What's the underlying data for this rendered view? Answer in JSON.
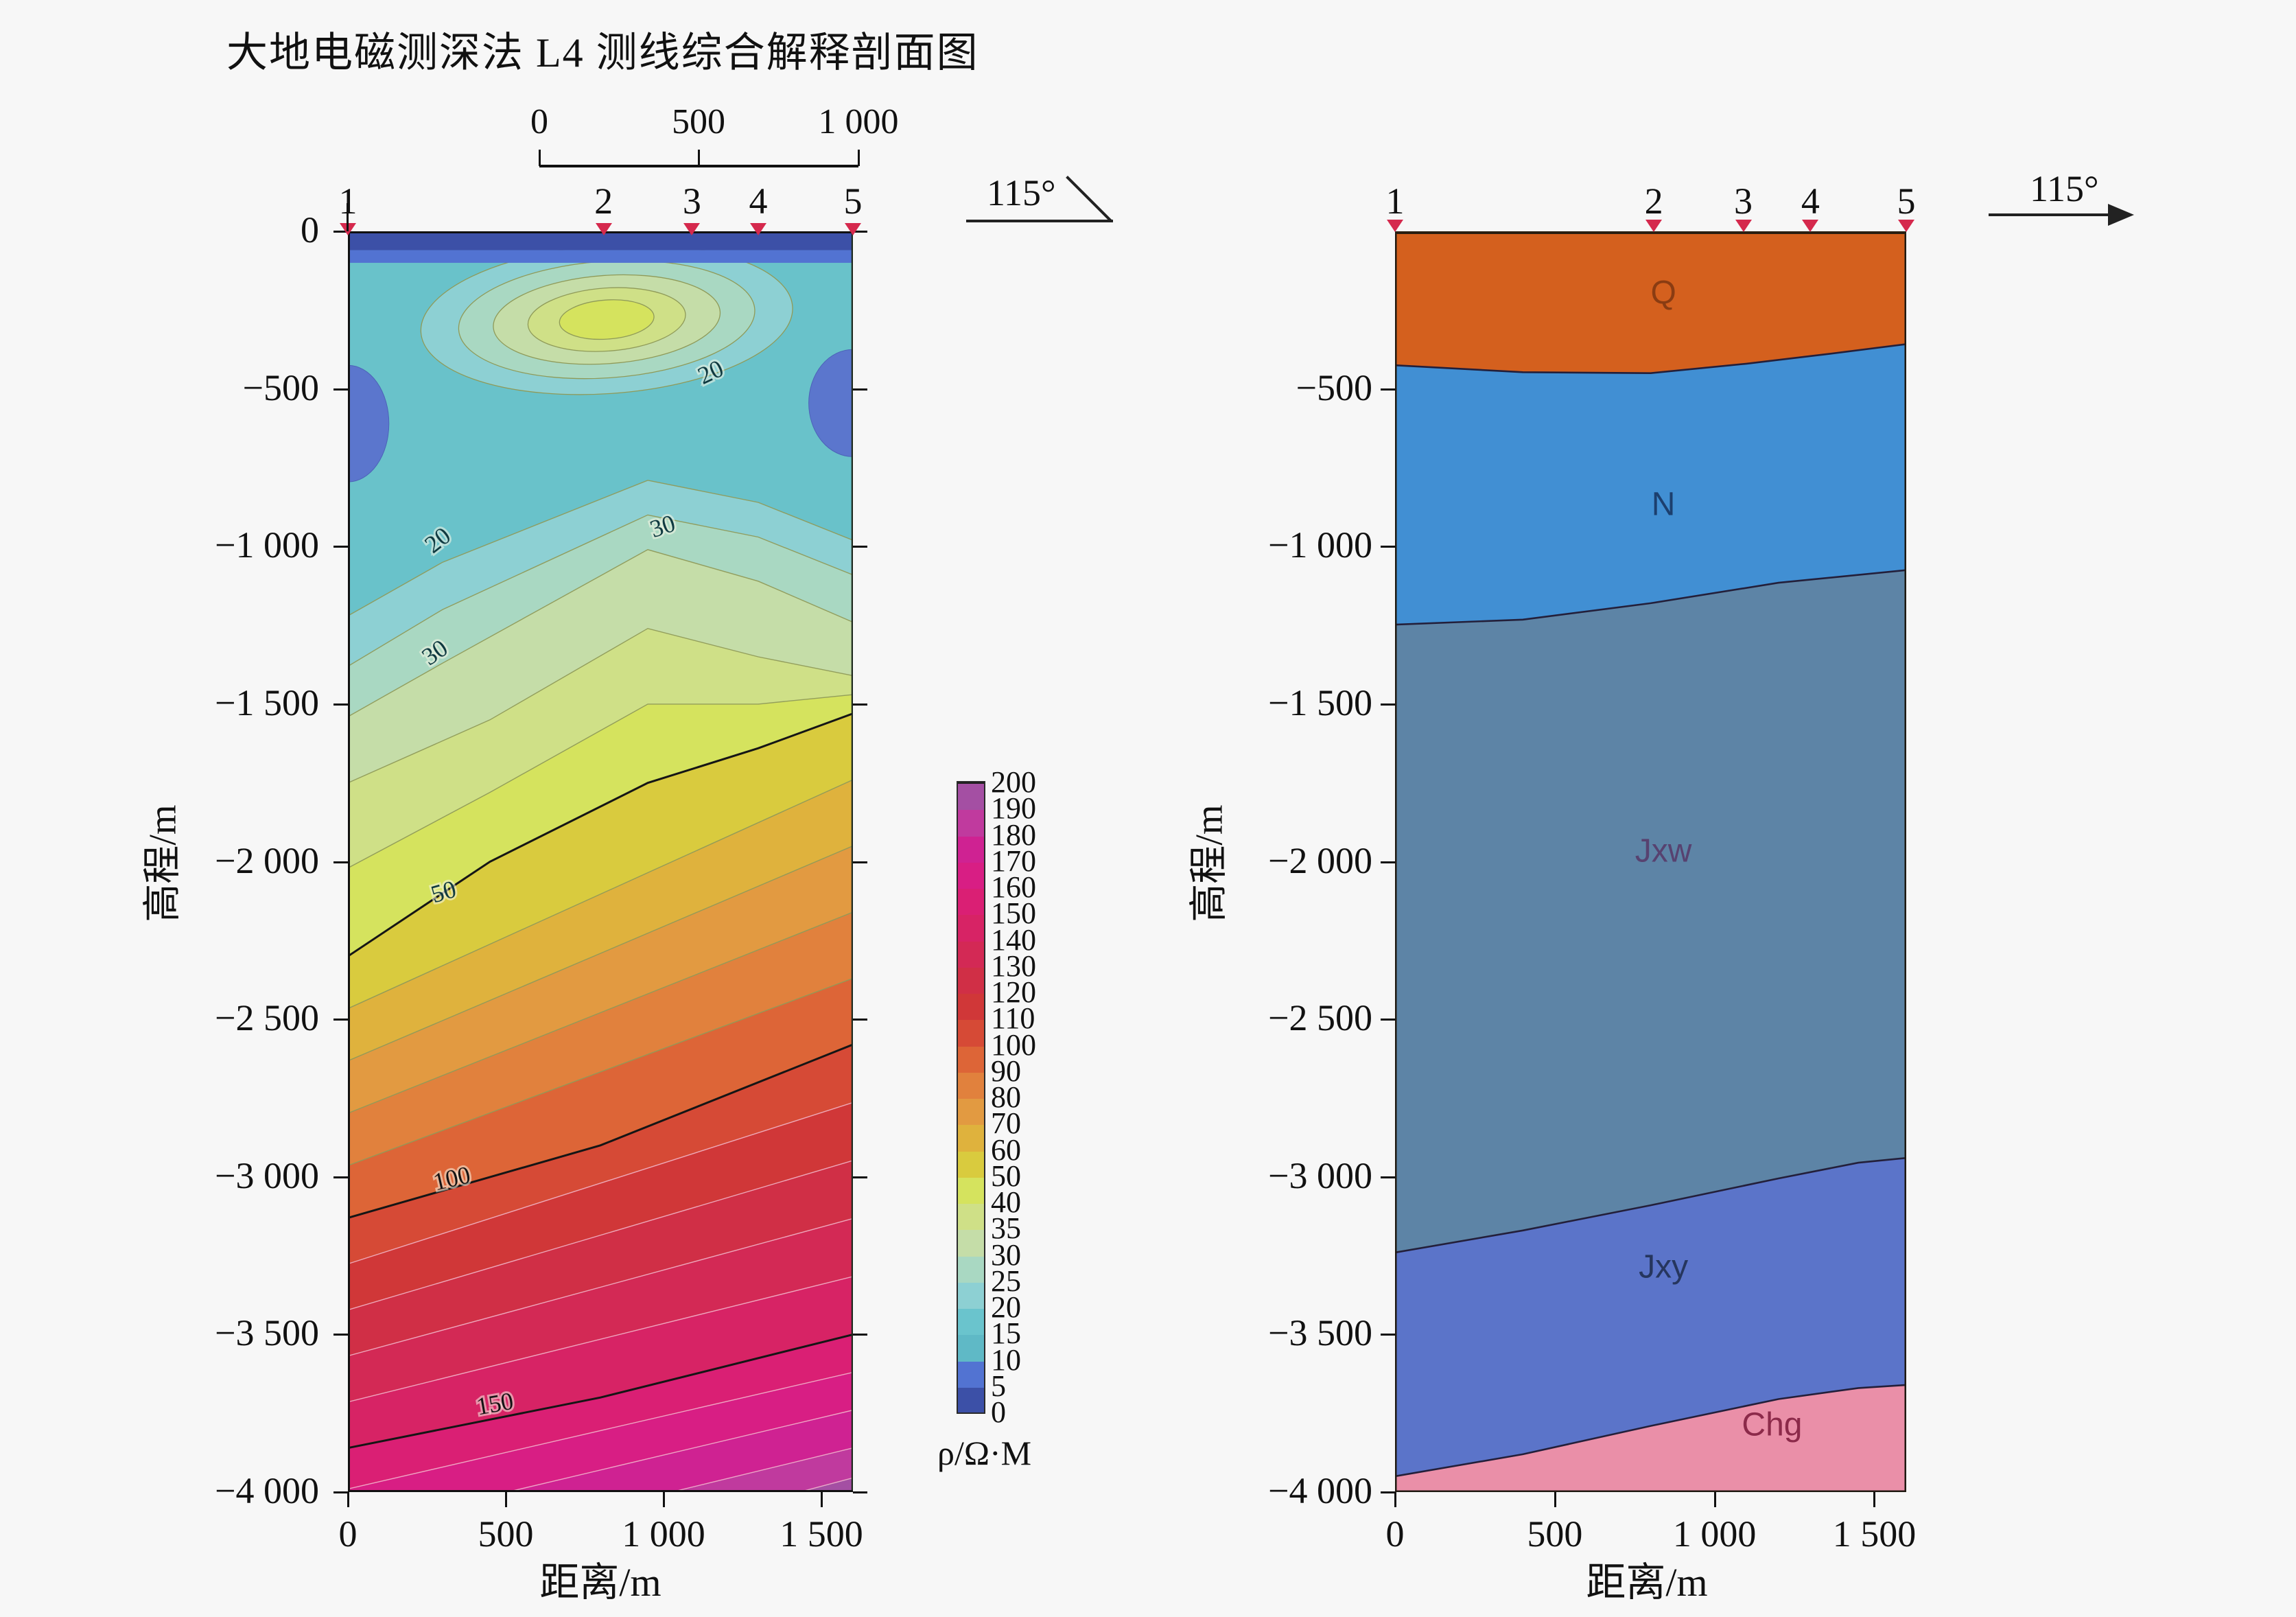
{
  "title": "大地电磁测深法 L4 测线综合解释剖面图",
  "scale_bar": {
    "tick_labels": [
      "0",
      "500",
      "1 000"
    ],
    "length_m": 1000
  },
  "azimuth_left": {
    "label": "115°"
  },
  "azimuth_right": {
    "label": "115°"
  },
  "marker_color": "#d5294d",
  "left_panel": {
    "stations": {
      "labels": [
        "1",
        "2",
        "3",
        "4",
        "5"
      ],
      "x_m": [
        0,
        810,
        1090,
        1300,
        1600
      ]
    },
    "ylabel": "高程/m",
    "xlabel": "距离/m",
    "ytick_labels": [
      "0",
      "−500",
      "−1 000",
      "−1 500",
      "−2 000",
      "−2 500",
      "−3 000",
      "−3 500",
      "−4 000"
    ],
    "ytick_values": [
      0,
      -500,
      -1000,
      -1500,
      -2000,
      -2500,
      -3000,
      -3500,
      -4000
    ],
    "xtick_labels": [
      "0",
      "500",
      "1 000",
      "1 500"
    ],
    "xtick_values": [
      0,
      500,
      1000,
      1500
    ]
  },
  "legend": {
    "title": "ρ/Ω·M",
    "tick_values": [
      0,
      5,
      10,
      15,
      20,
      25,
      30,
      35,
      40,
      50,
      60,
      70,
      80,
      90,
      100,
      110,
      120,
      130,
      140,
      150,
      160,
      170,
      180,
      190,
      200
    ],
    "band_colors_bottom_to_top": [
      "#3c50a7",
      "#5273d2",
      "#5fb9c6",
      "#6ac4cd",
      "#8dd0d3",
      "#a9d8c2",
      "#c5dda8",
      "#cfe087",
      "#d5e35e",
      "#d9cb3e",
      "#dfb23d",
      "#e29a41",
      "#e1813d",
      "#dd6537",
      "#d64a36",
      "#d03738",
      "#d02f46",
      "#d32955",
      "#d72365",
      "#da1f74",
      "#d81e84",
      "#cf2292",
      "#c03a9e",
      "#a44fa3"
    ]
  },
  "right_panel": {
    "stations": {
      "labels": [
        "1",
        "2",
        "3",
        "4",
        "5"
      ],
      "x_m": [
        0,
        810,
        1090,
        1300,
        1600
      ]
    },
    "ylabel": "高程/m",
    "xlabel": "距离/m",
    "ytick_labels": [
      "−500",
      "−1 000",
      "−1 500",
      "−2 000",
      "−2 500",
      "−3 000",
      "−3 500",
      "−4 000"
    ],
    "ytick_values": [
      -500,
      -1000,
      -1500,
      -2000,
      -2500,
      -3000,
      -3500,
      -4000
    ],
    "xtick_labels": [
      "0",
      "500",
      "1 000",
      "1 500"
    ],
    "xtick_values": [
      0,
      500,
      1000,
      1500
    ]
  },
  "chart_data": [
    {
      "type": "heatmap",
      "panel": "left",
      "title": "大地电磁测深法 L4 测线综合解释剖面图",
      "xlabel": "距离/m",
      "ylabel": "高程/m",
      "xlim": [
        0,
        1600
      ],
      "ylim": [
        -4000,
        0
      ],
      "azimuth": "115°",
      "colorbar_label": "ρ/Ω·M",
      "background_color": "#69c2ca",
      "background_value_range": "10–20 Ω·m",
      "surface_strips": [
        {
          "depth_range_m": [
            0,
            60
          ],
          "color": "#3c50a7",
          "value_range": "0–5"
        },
        {
          "depth_range_m": [
            60,
            100
          ],
          "color": "#5273d2",
          "value_range": "5–10"
        }
      ],
      "low_resistivity_blobs": [
        {
          "cx_m": 0,
          "cy_depth_m": 610,
          "rx_m": 130,
          "ry_m": 185,
          "color": "#5b76cd"
        },
        {
          "cx_m": 1600,
          "cy_depth_m": 545,
          "rx_m": 140,
          "ry_m": 170,
          "color": "#5b76cd"
        }
      ],
      "shallow_anomaly": {
        "cx_m": 820,
        "cy_depth_m": 280,
        "rotation_deg": -4,
        "rings": [
          {
            "rx_m": 590,
            "ry_m": 235,
            "color": "#8dd0d3"
          },
          {
            "rx_m": 470,
            "ry_m": 185,
            "color": "#a9d8c2"
          },
          {
            "rx_m": 360,
            "ry_m": 140,
            "color": "#c5dda8"
          },
          {
            "rx_m": 250,
            "ry_m": 100,
            "color": "#cfe087"
          },
          {
            "rx_m": 150,
            "ry_m": 62,
            "color": "#d5e35e"
          }
        ]
      },
      "contour_boundaries": [
        {
          "value": 20,
          "bold": false,
          "fill_below": "#8dd0d3",
          "points": [
            [
              0,
              1220
            ],
            [
              300,
              1050
            ],
            [
              950,
              790
            ],
            [
              1300,
              860
            ],
            [
              1600,
              980
            ]
          ]
        },
        {
          "value": 25,
          "bold": false,
          "fill_below": "#a9d8c2",
          "points": [
            [
              0,
              1380
            ],
            [
              300,
              1200
            ],
            [
              950,
              900
            ],
            [
              1300,
              970
            ],
            [
              1600,
              1090
            ]
          ]
        },
        {
          "value": 30,
          "bold": false,
          "fill_below": "#c5dda8",
          "points": [
            [
              0,
              1540
            ],
            [
              300,
              1370
            ],
            [
              950,
              1010
            ],
            [
              1300,
              1110
            ],
            [
              1600,
              1240
            ]
          ]
        },
        {
          "value": 35,
          "bold": false,
          "fill_below": "#cfe087",
          "points": [
            [
              0,
              1750
            ],
            [
              450,
              1550
            ],
            [
              950,
              1260
            ],
            [
              1300,
              1350
            ],
            [
              1600,
              1410
            ]
          ]
        },
        {
          "value": 40,
          "bold": false,
          "fill_below": "#d5e35e",
          "points": [
            [
              0,
              2020
            ],
            [
              450,
              1780
            ],
            [
              950,
              1500
            ],
            [
              1300,
              1500
            ],
            [
              1600,
              1470
            ]
          ]
        },
        {
          "value": 50,
          "bold": true,
          "fill_below": "#d9cb3e",
          "points": [
            [
              0,
              2300
            ],
            [
              450,
              2000
            ],
            [
              950,
              1750
            ],
            [
              1300,
              1640
            ],
            [
              1600,
              1530
            ]
          ]
        },
        {
          "value": 60,
          "bold": false,
          "fill_below": "#dfb23d",
          "points": [
            [
              0,
              2466
            ],
            [
              1600,
              1740
            ]
          ]
        },
        {
          "value": 70,
          "bold": false,
          "fill_below": "#e29a41",
          "points": [
            [
              0,
              2632
            ],
            [
              1600,
              1950
            ]
          ]
        },
        {
          "value": 80,
          "bold": false,
          "fill_below": "#e1813d",
          "points": [
            [
              0,
              2798
            ],
            [
              1600,
              2160
            ]
          ]
        },
        {
          "value": 90,
          "bold": false,
          "fill_below": "#dd6537",
          "points": [
            [
              0,
              2964
            ],
            [
              1600,
              2370
            ]
          ]
        },
        {
          "value": 100,
          "bold": true,
          "fill_below": "#d64a36",
          "points": [
            [
              0,
              3130
            ],
            [
              800,
              2900
            ],
            [
              1600,
              2580
            ]
          ]
        },
        {
          "value": 110,
          "bold": false,
          "fill_below": "#d03738",
          "points": [
            [
              0,
              3276
            ],
            [
              1600,
              2764
            ]
          ]
        },
        {
          "value": 120,
          "bold": false,
          "fill_below": "#d02f46",
          "points": [
            [
              0,
              3422
            ],
            [
              1600,
              2948
            ]
          ]
        },
        {
          "value": 130,
          "bold": false,
          "fill_below": "#d32955",
          "points": [
            [
              0,
              3568
            ],
            [
              1600,
              3132
            ]
          ]
        },
        {
          "value": 140,
          "bold": false,
          "fill_below": "#d72365",
          "points": [
            [
              0,
              3714
            ],
            [
              1600,
              3316
            ]
          ]
        },
        {
          "value": 150,
          "bold": true,
          "fill_below": "#da1f74",
          "points": [
            [
              0,
              3860
            ],
            [
              800,
              3700
            ],
            [
              1600,
              3500
            ]
          ]
        },
        {
          "value": 160,
          "bold": false,
          "fill_below": "#d81e84",
          "points": [
            [
              0,
              3990
            ],
            [
              1600,
              3620
            ]
          ]
        },
        {
          "value": 170,
          "bold": false,
          "fill_below": "#cf2292",
          "points": [
            [
              0,
              4120
            ],
            [
              1600,
              3740
            ]
          ]
        },
        {
          "value": 180,
          "bold": false,
          "fill_below": "#c03a9e",
          "points": [
            [
              0,
              4250
            ],
            [
              1600,
              3860
            ]
          ]
        },
        {
          "value": 190,
          "bold": false,
          "fill_below": "#a44fa3",
          "points": [
            [
              0,
              4380
            ],
            [
              1600,
              3955
            ]
          ]
        }
      ],
      "contour_labels": [
        {
          "text": "20",
          "x_m": 1160,
          "depth_m": 470,
          "rotation_deg": -25
        },
        {
          "text": "20",
          "x_m": 300,
          "depth_m": 1000,
          "rotation_deg": -38
        },
        {
          "text": "30",
          "x_m": 1005,
          "depth_m": 960,
          "rotation_deg": -18
        },
        {
          "text": "30",
          "x_m": 290,
          "depth_m": 1357,
          "rotation_deg": -35
        },
        {
          "text": "50",
          "x_m": 310,
          "depth_m": 2120,
          "rotation_deg": -16
        },
        {
          "text": "100",
          "x_m": 335,
          "depth_m": 3030,
          "rotation_deg": -13
        },
        {
          "text": "150",
          "x_m": 470,
          "depth_m": 3745,
          "rotation_deg": -10
        }
      ],
      "stations": {
        "labels": [
          "1",
          "2",
          "3",
          "4",
          "5"
        ],
        "x_m": [
          0,
          810,
          1090,
          1300,
          1600
        ]
      }
    },
    {
      "type": "area",
      "panel": "right",
      "xlabel": "距离/m",
      "ylabel": "高程/m",
      "xlim": [
        0,
        1600
      ],
      "ylim": [
        -4000,
        0
      ],
      "azimuth": "115°",
      "layers": [
        {
          "name": "Q",
          "color": "#d4601e",
          "label_color": "#8a3c12",
          "label_pos_m": [
            840,
            230
          ],
          "base_depth_m": [
            [
              0,
              425
            ],
            [
              400,
              447
            ],
            [
              800,
              450
            ],
            [
              1100,
              420
            ],
            [
              1350,
              390
            ],
            [
              1600,
              358
            ]
          ]
        },
        {
          "name": "N",
          "color": "#418fd3",
          "label_color": "#1c3f6e",
          "label_pos_m": [
            840,
            900
          ],
          "base_depth_m": [
            [
              0,
              1248
            ],
            [
              400,
              1232
            ],
            [
              800,
              1180
            ],
            [
              1200,
              1115
            ],
            [
              1600,
              1075
            ]
          ]
        },
        {
          "name": "Jxw",
          "color": "#5d84a6",
          "label_color": "#574270",
          "label_pos_m": [
            840,
            2000
          ],
          "base_depth_m": [
            [
              0,
              3240
            ],
            [
              400,
              3170
            ],
            [
              800,
              3090
            ],
            [
              1200,
              3005
            ],
            [
              1450,
              2955
            ],
            [
              1600,
              2940
            ]
          ]
        },
        {
          "name": "Jxy",
          "color": "#5b74c9",
          "label_color": "#26365e",
          "label_pos_m": [
            840,
            3320
          ],
          "base_depth_m": [
            [
              0,
              3950
            ],
            [
              400,
              3880
            ],
            [
              800,
              3790
            ],
            [
              1200,
              3705
            ],
            [
              1450,
              3670
            ],
            [
              1600,
              3660
            ]
          ]
        },
        {
          "name": "Chg",
          "color": "#ea8fa8",
          "label_color": "#8c2a4a",
          "label_pos_m": [
            1180,
            3820
          ],
          "base_depth_m": [
            [
              0,
              4000
            ],
            [
              1600,
              4000
            ]
          ]
        }
      ],
      "stations": {
        "labels": [
          "1",
          "2",
          "3",
          "4",
          "5"
        ],
        "x_m": [
          0,
          810,
          1090,
          1300,
          1600
        ]
      }
    }
  ]
}
